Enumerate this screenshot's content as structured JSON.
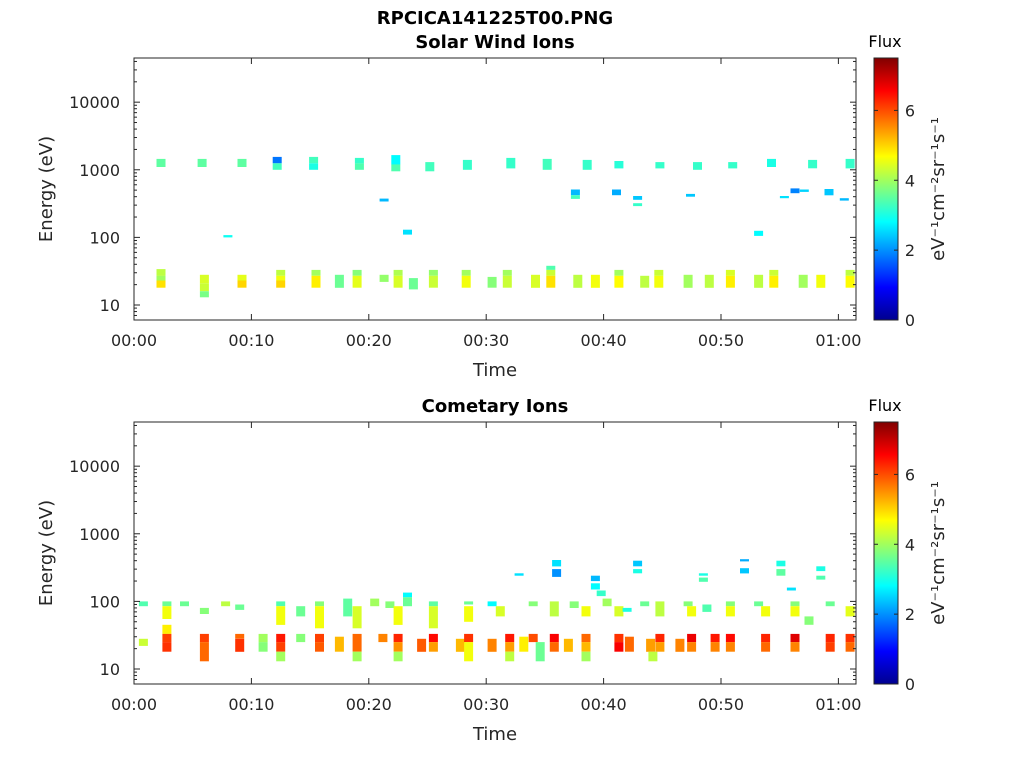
{
  "figure": {
    "title": "RPCICA141225T00.PNG",
    "colormap": "jet",
    "colorbar": {
      "title": "Flux",
      "label": "eV⁻¹cm⁻²sr⁻¹s⁻¹",
      "ticks": [
        "0",
        "2",
        "4",
        "6"
      ],
      "range": [
        0,
        7.5
      ]
    }
  },
  "chart_data": [
    {
      "type": "heatmap",
      "title": "Solar Wind Ions",
      "xlabel": "Time",
      "ylabel": "Energy (eV)",
      "xticks": [
        "00:00",
        "00:10",
        "00:20",
        "00:30",
        "00:40",
        "00:50",
        "01:00"
      ],
      "xlim_minutes": [
        0,
        61.5
      ],
      "yscale": "log",
      "yticks": [
        "10",
        "100",
        "1000",
        "10000"
      ],
      "ylim": [
        6,
        45000
      ],
      "cells": [
        [
          2.3,
          1100,
          1450,
          3.5
        ],
        [
          5.8,
          1100,
          1450,
          3.5
        ],
        [
          9.2,
          1100,
          1450,
          3.5
        ],
        [
          12.2,
          1000,
          1250,
          3.3
        ],
        [
          12.2,
          1250,
          1550,
          1.8
        ],
        [
          15.3,
          1000,
          1250,
          3.0
        ],
        [
          15.3,
          1250,
          1550,
          3.3
        ],
        [
          19.2,
          1000,
          1250,
          3.4
        ],
        [
          19.2,
          1250,
          1500,
          3.2
        ],
        [
          22.3,
          1200,
          1650,
          2.8
        ],
        [
          22.3,
          950,
          1200,
          3.4
        ],
        [
          25.2,
          950,
          1300,
          3.3
        ],
        [
          28.4,
          1000,
          1400,
          3.2
        ],
        [
          32.1,
          1050,
          1500,
          3.2
        ],
        [
          35.2,
          1000,
          1450,
          3.3
        ],
        [
          38.6,
          1000,
          1400,
          3.2
        ],
        [
          41.3,
          1050,
          1350,
          3.1
        ],
        [
          44.8,
          1050,
          1300,
          3.2
        ],
        [
          48,
          1000,
          1300,
          3.2
        ],
        [
          51,
          1050,
          1300,
          3.2
        ],
        [
          54.3,
          1100,
          1450,
          3.0
        ],
        [
          57.8,
          1050,
          1400,
          3.2
        ],
        [
          61,
          1050,
          1450,
          3.2
        ],
        [
          37.6,
          420,
          510,
          2.3
        ],
        [
          37.6,
          370,
          420,
          3.3
        ],
        [
          41.1,
          420,
          510,
          2.2
        ],
        [
          42.9,
          360,
          410,
          2.4
        ],
        [
          42.9,
          290,
          320,
          3.2
        ],
        [
          47.4,
          400,
          440,
          2.4
        ],
        [
          56.3,
          450,
          530,
          1.9
        ],
        [
          57.1,
          470,
          510,
          2.5
        ],
        [
          55.4,
          380,
          410,
          2.6
        ],
        [
          59.2,
          420,
          520,
          2.4
        ],
        [
          60.5,
          350,
          380,
          2.3
        ],
        [
          21.3,
          340,
          375,
          2.3
        ],
        [
          23.3,
          110,
          130,
          2.6
        ],
        [
          53.2,
          105,
          125,
          2.8
        ],
        [
          8,
          100,
          108,
          2.9
        ],
        [
          2.3,
          27,
          34,
          4.2
        ],
        [
          2.3,
          23,
          27,
          4.0
        ],
        [
          2.3,
          18,
          23,
          4.9
        ],
        [
          6,
          21,
          28,
          4.4
        ],
        [
          6,
          16,
          21,
          4.3
        ],
        [
          6,
          13,
          16,
          3.7
        ],
        [
          9.2,
          23,
          28,
          4.5
        ],
        [
          9.2,
          18,
          23,
          5.0
        ],
        [
          12.5,
          27,
          33,
          4.2
        ],
        [
          12.5,
          23,
          27,
          4.6
        ],
        [
          12.5,
          18,
          23,
          5.0
        ],
        [
          15.5,
          27,
          33,
          4.0
        ],
        [
          15.5,
          18,
          27,
          4.8
        ],
        [
          17.5,
          18,
          28,
          3.6
        ],
        [
          19,
          27,
          33,
          3.8
        ],
        [
          19,
          18,
          27,
          4.5
        ],
        [
          21.3,
          22,
          28,
          3.9
        ],
        [
          22.5,
          27,
          33,
          4.1
        ],
        [
          22.5,
          18,
          27,
          4.4
        ],
        [
          23.8,
          17,
          25,
          3.6
        ],
        [
          25.5,
          27,
          33,
          3.9
        ],
        [
          25.5,
          18,
          27,
          4.3
        ],
        [
          28.3,
          27,
          33,
          4.0
        ],
        [
          28.3,
          18,
          27,
          4.6
        ],
        [
          30.5,
          18,
          26,
          3.8
        ],
        [
          31.8,
          27,
          33,
          4.0
        ],
        [
          31.8,
          18,
          27,
          4.3
        ],
        [
          34.2,
          18,
          28,
          4.4
        ],
        [
          35.5,
          33,
          38,
          3.4
        ],
        [
          35.5,
          27,
          33,
          4.3
        ],
        [
          35.5,
          18,
          27,
          4.9
        ],
        [
          37.8,
          18,
          28,
          4.2
        ],
        [
          39.3,
          18,
          28,
          4.6
        ],
        [
          41.3,
          27,
          33,
          4.0
        ],
        [
          41.3,
          18,
          27,
          4.7
        ],
        [
          43.5,
          18,
          27,
          4.2
        ],
        [
          44.7,
          27,
          33,
          4.3
        ],
        [
          44.7,
          18,
          27,
          4.6
        ],
        [
          47.2,
          18,
          28,
          4.0
        ],
        [
          49,
          18,
          28,
          4.2
        ],
        [
          50.8,
          27,
          33,
          4.4
        ],
        [
          50.8,
          18,
          27,
          4.8
        ],
        [
          53.2,
          18,
          28,
          4.2
        ],
        [
          54.5,
          27,
          33,
          4.3
        ],
        [
          54.5,
          18,
          27,
          4.8
        ],
        [
          57,
          18,
          28,
          4.0
        ],
        [
          58.5,
          18,
          28,
          4.6
        ],
        [
          61,
          27,
          33,
          4.2
        ],
        [
          61,
          18,
          27,
          4.7
        ]
      ]
    },
    {
      "type": "heatmap",
      "title": "Cometary Ions",
      "xlabel": "Time",
      "ylabel": "Energy (eV)",
      "xticks": [
        "00:00",
        "00:10",
        "00:20",
        "00:30",
        "00:40",
        "00:50",
        "01:00"
      ],
      "xlim_minutes": [
        0,
        61.5
      ],
      "yscale": "log",
      "yticks": [
        "10",
        "100",
        "1000",
        "10000"
      ],
      "ylim": [
        6,
        45000
      ],
      "cells": [
        [
          0.8,
          85,
          100,
          3.4
        ],
        [
          0.8,
          22,
          28,
          4.3
        ],
        [
          2.8,
          85,
          100,
          3.6
        ],
        [
          2.8,
          55,
          85,
          4.6
        ],
        [
          2.8,
          33,
          45,
          4.8
        ],
        [
          2.8,
          25,
          33,
          6.1
        ],
        [
          2.8,
          18,
          25,
          6.2
        ],
        [
          4.3,
          85,
          100,
          3.6
        ],
        [
          6,
          65,
          80,
          3.8
        ],
        [
          6,
          25,
          33,
          6.1
        ],
        [
          6,
          13,
          25,
          5.8
        ],
        [
          7.8,
          85,
          100,
          4.2
        ],
        [
          9,
          75,
          90,
          3.6
        ],
        [
          9,
          28,
          33,
          5.8
        ],
        [
          9,
          18,
          28,
          6.2
        ],
        [
          11,
          25,
          33,
          4.0
        ],
        [
          11,
          18,
          25,
          3.8
        ],
        [
          12.5,
          85,
          100,
          3.4
        ],
        [
          12.5,
          45,
          85,
          4.6
        ],
        [
          12.5,
          25,
          33,
          6.4
        ],
        [
          12.5,
          18,
          25,
          6.1
        ],
        [
          12.5,
          13,
          18,
          4.0
        ],
        [
          14.2,
          60,
          85,
          3.6
        ],
        [
          14.2,
          25,
          33,
          3.8
        ],
        [
          15.8,
          85,
          100,
          3.8
        ],
        [
          15.8,
          40,
          85,
          4.6
        ],
        [
          15.8,
          25,
          33,
          6.1
        ],
        [
          15.8,
          18,
          25,
          5.9
        ],
        [
          17.5,
          18,
          30,
          5.2
        ],
        [
          18.2,
          60,
          110,
          3.5
        ],
        [
          19,
          40,
          85,
          4.4
        ],
        [
          19,
          18,
          33,
          5.8
        ],
        [
          19,
          13,
          18,
          4.0
        ],
        [
          20.5,
          85,
          110,
          4.0
        ],
        [
          21.2,
          25,
          33,
          5.6
        ],
        [
          21.8,
          80,
          100,
          3.8
        ],
        [
          22.5,
          45,
          85,
          4.6
        ],
        [
          22.5,
          25,
          33,
          6.3
        ],
        [
          22.5,
          18,
          25,
          5.5
        ],
        [
          22.5,
          13,
          18,
          4.0
        ],
        [
          23.3,
          115,
          135,
          2.8
        ],
        [
          23.3,
          85,
          115,
          3.6
        ],
        [
          24.5,
          18,
          28,
          5.9
        ],
        [
          25.5,
          85,
          100,
          3.5
        ],
        [
          25.5,
          40,
          85,
          4.4
        ],
        [
          25.5,
          25,
          33,
          6.5
        ],
        [
          25.5,
          18,
          25,
          5.4
        ],
        [
          27.8,
          18,
          28,
          5.2
        ],
        [
          28.5,
          90,
          100,
          3.6
        ],
        [
          28.5,
          50,
          85,
          4.6
        ],
        [
          28.5,
          25,
          33,
          6.2
        ],
        [
          28.5,
          13,
          25,
          4.6
        ],
        [
          30.5,
          18,
          28,
          5.6
        ],
        [
          30.5,
          85,
          100,
          2.8
        ],
        [
          31.2,
          60,
          85,
          4.4
        ],
        [
          32,
          25,
          33,
          6.4
        ],
        [
          32,
          18,
          25,
          5.4
        ],
        [
          32,
          13,
          18,
          4.2
        ],
        [
          33.2,
          18,
          30,
          4.8
        ],
        [
          32.8,
          240,
          260,
          2.6
        ],
        [
          34,
          85,
          100,
          3.8
        ],
        [
          34,
          25,
          33,
          6.0
        ],
        [
          34.6,
          13,
          25,
          3.6
        ],
        [
          35.8,
          60,
          100,
          4.2
        ],
        [
          35.8,
          25,
          33,
          6.6
        ],
        [
          35.8,
          18,
          25,
          5.8
        ],
        [
          36,
          330,
          410,
          2.6
        ],
        [
          36,
          230,
          300,
          2.0
        ],
        [
          37,
          18,
          28,
          5.2
        ],
        [
          37.5,
          80,
          100,
          3.8
        ],
        [
          38.5,
          60,
          85,
          4.6
        ],
        [
          38.5,
          25,
          33,
          5.8
        ],
        [
          38.5,
          18,
          25,
          5.2
        ],
        [
          38.5,
          13,
          18,
          4.0
        ],
        [
          39.3,
          200,
          240,
          2.3
        ],
        [
          39.3,
          150,
          185,
          2.8
        ],
        [
          39.8,
          120,
          145,
          3.2
        ],
        [
          40.3,
          85,
          110,
          4.0
        ],
        [
          41.3,
          60,
          85,
          4.4
        ],
        [
          41.3,
          25,
          33,
          6.2
        ],
        [
          41.3,
          18,
          25,
          6.6
        ],
        [
          42.2,
          18,
          30,
          5.8
        ],
        [
          42.9,
          330,
          400,
          2.4
        ],
        [
          42.9,
          260,
          300,
          3.0
        ],
        [
          42,
          70,
          80,
          3.0
        ],
        [
          43.5,
          85,
          100,
          3.6
        ],
        [
          44,
          18,
          28,
          5.4
        ],
        [
          44.2,
          13,
          18,
          4.2
        ],
        [
          44.8,
          60,
          100,
          4.2
        ],
        [
          44.8,
          25,
          33,
          6.3
        ],
        [
          44.8,
          18,
          25,
          5.4
        ],
        [
          46.5,
          18,
          28,
          5.6
        ],
        [
          47.2,
          85,
          100,
          3.8
        ],
        [
          47.5,
          60,
          85,
          4.6
        ],
        [
          47.5,
          25,
          33,
          6.7
        ],
        [
          47.5,
          18,
          25,
          5.6
        ],
        [
          48.5,
          240,
          260,
          3.0
        ],
        [
          48.5,
          195,
          225,
          3.4
        ],
        [
          48.8,
          70,
          90,
          3.4
        ],
        [
          49.5,
          25,
          33,
          6.4
        ],
        [
          49.5,
          18,
          25,
          5.6
        ],
        [
          50.8,
          85,
          100,
          3.8
        ],
        [
          50.8,
          60,
          85,
          4.6
        ],
        [
          50.8,
          25,
          33,
          6.5
        ],
        [
          50.8,
          18,
          25,
          5.6
        ],
        [
          52,
          390,
          420,
          2.2
        ],
        [
          52,
          260,
          310,
          2.4
        ],
        [
          53.2,
          85,
          100,
          3.6
        ],
        [
          53.8,
          60,
          85,
          4.6
        ],
        [
          53.8,
          25,
          33,
          6.3
        ],
        [
          53.8,
          18,
          25,
          5.8
        ],
        [
          55.1,
          330,
          400,
          3.0
        ],
        [
          55.1,
          240,
          300,
          3.5
        ],
        [
          56,
          145,
          160,
          2.6
        ],
        [
          56.3,
          85,
          100,
          3.8
        ],
        [
          56.3,
          60,
          85,
          4.6
        ],
        [
          56.3,
          25,
          33,
          6.8
        ],
        [
          56.3,
          18,
          25,
          5.6
        ],
        [
          57.5,
          45,
          60,
          3.8
        ],
        [
          58.5,
          280,
          330,
          3.0
        ],
        [
          58.5,
          210,
          240,
          3.4
        ],
        [
          59.3,
          85,
          100,
          3.6
        ],
        [
          59.3,
          25,
          33,
          6.3
        ],
        [
          59.3,
          18,
          25,
          6.1
        ],
        [
          61,
          60,
          85,
          4.5
        ],
        [
          61,
          25,
          33,
          6.2
        ],
        [
          61,
          18,
          25,
          5.8
        ]
      ]
    }
  ]
}
